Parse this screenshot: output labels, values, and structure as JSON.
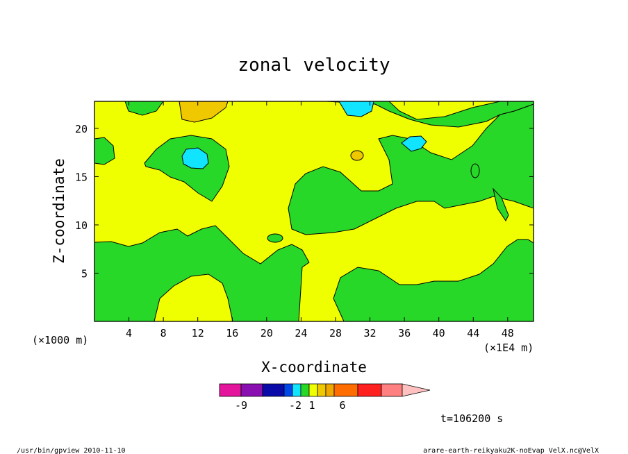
{
  "chart_data": {
    "type": "contour",
    "title": "zonal velocity",
    "xlabel": "X-coordinate",
    "ylabel": "Z-coordinate",
    "x_unit": "(×1000 m)",
    "x_scale_note": "(×1E4 m)",
    "xlim": [
      0,
      51
    ],
    "ylim": [
      0,
      22.8
    ],
    "x_ticks": [
      "4",
      "8",
      "12",
      "16",
      "20",
      "24",
      "28",
      "32",
      "36",
      "40",
      "44",
      "48"
    ],
    "x_tick_values": [
      4,
      8,
      12,
      16,
      20,
      24,
      28,
      32,
      36,
      40,
      44,
      48
    ],
    "y_ticks": [
      "5",
      "10",
      "15",
      "20"
    ],
    "y_tick_values": [
      5,
      10,
      15,
      20
    ],
    "background_level": "-1 to 1",
    "colorbar": {
      "labels": [
        "-9",
        "-2",
        "1",
        "6"
      ],
      "label_levels": [
        -9,
        -2,
        1,
        6
      ],
      "colors": [
        "#e4149c",
        "#8a0fb0",
        "#0a0aa8",
        "#0048e8",
        "#10e4ff",
        "#28d828",
        "#f0ff00",
        "#f0c800",
        "#f0a800",
        "#ff6c00",
        "#ff2020",
        "#ff8080",
        "#ffc0c0"
      ]
    },
    "regions": [
      {
        "level": "green",
        "color": "#28d828",
        "description": "lower-left and lower-center band"
      },
      {
        "level": "green",
        "color": "#28d828",
        "description": "upper-left patch with cyan core"
      },
      {
        "level": "green",
        "color": "#28d828",
        "description": "central-right tongue"
      },
      {
        "level": "cyan",
        "color": "#10e4ff",
        "description": "negative minima"
      },
      {
        "level": "orange",
        "color": "#f0c800",
        "description": "positive maxima"
      }
    ],
    "time_label": "t=106200 s"
  },
  "footer": {
    "left": "/usr/bin/gpview  2010-11-10",
    "right": "arare-earth-reikyaku2K-noEvap_VelX.nc@VelX"
  }
}
